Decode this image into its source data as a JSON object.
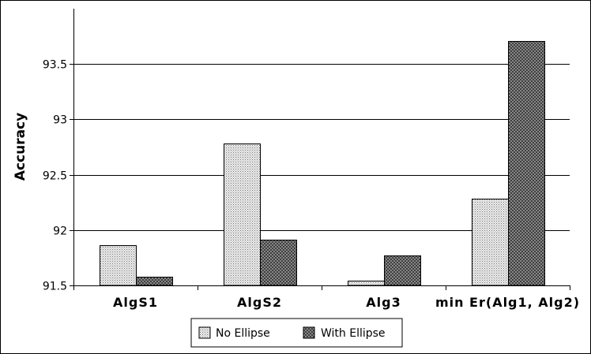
{
  "chart_data": {
    "type": "bar",
    "title": "",
    "xlabel": "",
    "ylabel": "Accuracy",
    "ylim": [
      91.5,
      94.0
    ],
    "yticks": [
      91.5,
      92,
      92.5,
      93,
      93.5
    ],
    "ytick_labels": [
      "91.5",
      "92",
      "92.5",
      "93",
      "93.5"
    ],
    "grid": "horizontal",
    "legend_position": "bottom",
    "categories": [
      "AlgS1",
      "AlgS2",
      "Alg3",
      "min Er(Alg1, Alg2)"
    ],
    "series": [
      {
        "name": "No Ellipse",
        "values": [
          91.86,
          92.78,
          91.54,
          92.28
        ],
        "fill": "#d4d4d4",
        "pattern": "dots"
      },
      {
        "name": "With Ellipse",
        "values": [
          91.58,
          91.91,
          91.77,
          93.71
        ],
        "fill": "#404040",
        "pattern": "crosshatch"
      }
    ]
  }
}
